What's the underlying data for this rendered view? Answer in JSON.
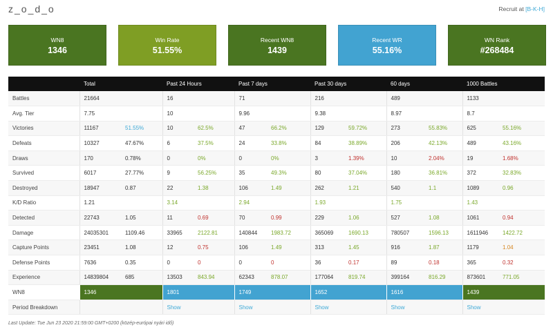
{
  "header": {
    "player_name": "z_o_d_o",
    "recruit_label": "Recruit at ",
    "recruit_clan": "[B-K-H]"
  },
  "cards": [
    {
      "label": "WN8",
      "value": "1346",
      "color": "#4a7521"
    },
    {
      "label": "Win Rate",
      "value": "51.55%",
      "color": "#7f9e24"
    },
    {
      "label": "Recent WN8",
      "value": "1439",
      "color": "#4a7521"
    },
    {
      "label": "Recent WR",
      "value": "55.16%",
      "color": "#42a3d1"
    },
    {
      "label": "WN Rank",
      "value": "#268484",
      "color": "#4a7521"
    }
  ],
  "columns": [
    "",
    "Total",
    "Past 24 Hours",
    "Past 7 days",
    "Past 30 days",
    "60 days",
    "1000 Battles"
  ],
  "rows": [
    {
      "label": "Battles",
      "cells": [
        [
          "21664",
          ""
        ],
        [
          "16",
          ""
        ],
        [
          "71",
          ""
        ],
        [
          "216",
          ""
        ],
        [
          "489",
          ""
        ],
        [
          "1133",
          ""
        ]
      ],
      "tones": [
        "",
        "",
        "",
        "",
        "",
        ""
      ]
    },
    {
      "label": "Avg. Tier",
      "cells": [
        [
          "7.75",
          ""
        ],
        [
          "10",
          ""
        ],
        [
          "9.96",
          ""
        ],
        [
          "9.38",
          ""
        ],
        [
          "8.97",
          ""
        ],
        [
          "8.7",
          ""
        ]
      ],
      "tones": [
        "",
        "",
        "",
        "",
        "",
        ""
      ]
    },
    {
      "label": "Victories",
      "cells": [
        [
          "11167",
          "51.55%"
        ],
        [
          "10",
          "62.5%"
        ],
        [
          "47",
          "66.2%"
        ],
        [
          "129",
          "59.72%"
        ],
        [
          "273",
          "55.83%"
        ],
        [
          "625",
          "55.16%"
        ]
      ],
      "tones": [
        "b",
        "g",
        "g",
        "g",
        "g",
        "g"
      ]
    },
    {
      "label": "Defeats",
      "cells": [
        [
          "10327",
          "47.67%"
        ],
        [
          "6",
          "37.5%"
        ],
        [
          "24",
          "33.8%"
        ],
        [
          "84",
          "38.89%"
        ],
        [
          "206",
          "42.13%"
        ],
        [
          "489",
          "43.16%"
        ]
      ],
      "tones": [
        "",
        "g",
        "g",
        "g",
        "g",
        "g"
      ]
    },
    {
      "label": "Draws",
      "cells": [
        [
          "170",
          "0.78%"
        ],
        [
          "0",
          "0%"
        ],
        [
          "0",
          "0%"
        ],
        [
          "3",
          "1.39%"
        ],
        [
          "10",
          "2.04%"
        ],
        [
          "19",
          "1.68%"
        ]
      ],
      "tones": [
        "",
        "g",
        "g",
        "r",
        "r",
        "r"
      ]
    },
    {
      "label": "Survived",
      "cells": [
        [
          "6017",
          "27.77%"
        ],
        [
          "9",
          "56.25%"
        ],
        [
          "35",
          "49.3%"
        ],
        [
          "80",
          "37.04%"
        ],
        [
          "180",
          "36.81%"
        ],
        [
          "372",
          "32.83%"
        ]
      ],
      "tones": [
        "",
        "g",
        "g",
        "g",
        "g",
        "g"
      ]
    },
    {
      "label": "Destroyed",
      "cells": [
        [
          "18947",
          "0.87"
        ],
        [
          "22",
          "1.38"
        ],
        [
          "106",
          "1.49"
        ],
        [
          "262",
          "1.21"
        ],
        [
          "540",
          "1.1"
        ],
        [
          "1089",
          "0.96"
        ]
      ],
      "tones": [
        "",
        "g",
        "g",
        "g",
        "g",
        "g"
      ]
    },
    {
      "label": "K/D Ratio",
      "cells": [
        [
          "1.21",
          ""
        ],
        [
          "3.14",
          ""
        ],
        [
          "2.94",
          ""
        ],
        [
          "1.93",
          ""
        ],
        [
          "1.75",
          ""
        ],
        [
          "1.43",
          ""
        ]
      ],
      "tones": [
        "",
        "",
        "",
        "",
        "",
        ""
      ],
      "first_tones": [
        "",
        "g",
        "g",
        "g",
        "g",
        "g"
      ]
    },
    {
      "label": "Detected",
      "cells": [
        [
          "22743",
          "1.05"
        ],
        [
          "11",
          "0.69"
        ],
        [
          "70",
          "0.99"
        ],
        [
          "229",
          "1.06"
        ],
        [
          "527",
          "1.08"
        ],
        [
          "1061",
          "0.94"
        ]
      ],
      "tones": [
        "",
        "r",
        "r",
        "g",
        "g",
        "r"
      ]
    },
    {
      "label": "Damage",
      "cells": [
        [
          "24035301",
          "1109.46"
        ],
        [
          "33965",
          "2122.81"
        ],
        [
          "140844",
          "1983.72"
        ],
        [
          "365069",
          "1690.13"
        ],
        [
          "780507",
          "1596.13"
        ],
        [
          "1611946",
          "1422.72"
        ]
      ],
      "tones": [
        "",
        "g",
        "g",
        "g",
        "g",
        "g"
      ]
    },
    {
      "label": "Capture Points",
      "cells": [
        [
          "23451",
          "1.08"
        ],
        [
          "12",
          "0.75"
        ],
        [
          "106",
          "1.49"
        ],
        [
          "313",
          "1.45"
        ],
        [
          "916",
          "1.87"
        ],
        [
          "1179",
          "1.04"
        ]
      ],
      "tones": [
        "",
        "r",
        "g",
        "g",
        "g",
        "o"
      ]
    },
    {
      "label": "Defense Points",
      "cells": [
        [
          "7636",
          "0.35"
        ],
        [
          "0",
          "0"
        ],
        [
          "0",
          "0"
        ],
        [
          "36",
          "0.17"
        ],
        [
          "89",
          "0.18"
        ],
        [
          "365",
          "0.32"
        ]
      ],
      "tones": [
        "",
        "r",
        "r",
        "r",
        "r",
        "r"
      ]
    },
    {
      "label": "Experience",
      "cells": [
        [
          "14839804",
          "685"
        ],
        [
          "13503",
          "843.94"
        ],
        [
          "62343",
          "878.07"
        ],
        [
          "177064",
          "819.74"
        ],
        [
          "399164",
          "816.29"
        ],
        [
          "873601",
          "771.05"
        ]
      ],
      "tones": [
        "",
        "g",
        "g",
        "g",
        "g",
        "g"
      ]
    }
  ],
  "wn8_row": {
    "label": "WN8",
    "values": [
      "1346",
      "1801",
      "1749",
      "1652",
      "1616",
      "1439"
    ],
    "colors": [
      "#4a7521",
      "#42a3d1",
      "#42a3d1",
      "#42a3d1",
      "#42a3d1",
      "#4a7521"
    ]
  },
  "breakdown_row": {
    "label": "Period Breakdown",
    "link": "Show"
  },
  "footer": {
    "last_update": "Last Update: Tue Jun 23 2020 21:59:00 GMT+0200 (közép-európai nyári idő)"
  }
}
